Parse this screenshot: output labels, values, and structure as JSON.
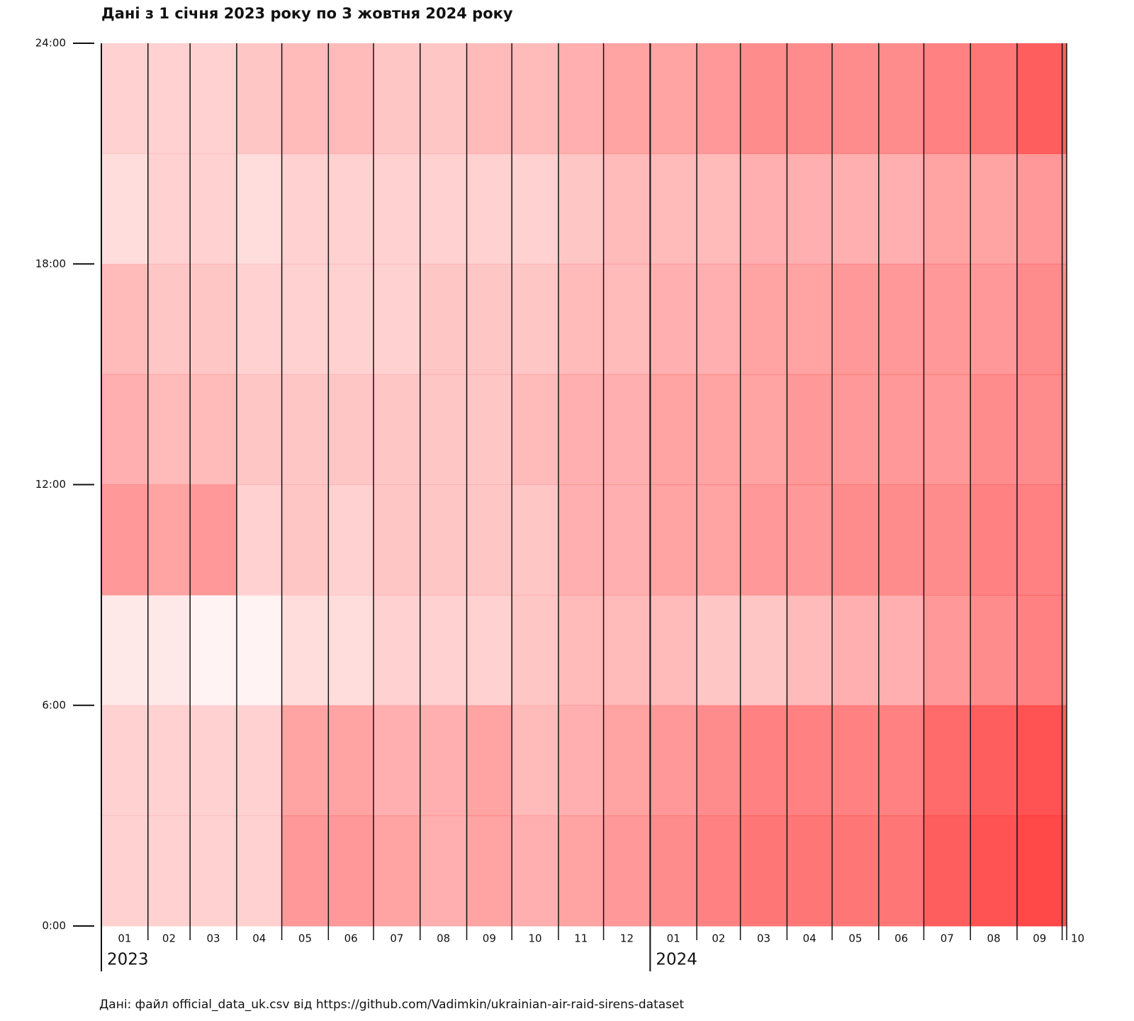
{
  "chart_data": {
    "type": "heatmap",
    "title": "Дані з 1 січня 2023 року по 3 жовтня 2024 року",
    "source": "Дані: файл official_data_uk.csv від https://github.com/Vadimkin/ukrainian-air-raid-sirens-dataset",
    "color": "#ff1a1a",
    "x": [
      "2023-01",
      "2023-02",
      "2023-03",
      "2023-04",
      "2023-05",
      "2023-06",
      "2023-07",
      "2023-08",
      "2023-09",
      "2023-10",
      "2023-11",
      "2023-12",
      "2024-01",
      "2024-02",
      "2024-03",
      "2024-04",
      "2024-05",
      "2024-06",
      "2024-07",
      "2024-08",
      "2024-09",
      "2024-10"
    ],
    "xlim": [
      "2023-01-01",
      "2024-10-03"
    ],
    "xticks": [
      {
        "value": "2023-01",
        "label": "01"
      },
      {
        "value": "2023-02",
        "label": "02"
      },
      {
        "value": "2023-03",
        "label": "03"
      },
      {
        "value": "2023-04",
        "label": "04"
      },
      {
        "value": "2023-05",
        "label": "05"
      },
      {
        "value": "2023-06",
        "label": "06"
      },
      {
        "value": "2023-07",
        "label": "07"
      },
      {
        "value": "2023-08",
        "label": "08"
      },
      {
        "value": "2023-09",
        "label": "09"
      },
      {
        "value": "2023-10",
        "label": "10"
      },
      {
        "value": "2023-11",
        "label": "11"
      },
      {
        "value": "2023-12",
        "label": "12"
      },
      {
        "value": "2024-01",
        "label": "01"
      },
      {
        "value": "2024-02",
        "label": "02"
      },
      {
        "value": "2024-03",
        "label": "03"
      },
      {
        "value": "2024-04",
        "label": "04"
      },
      {
        "value": "2024-05",
        "label": "05"
      },
      {
        "value": "2024-06",
        "label": "06"
      },
      {
        "value": "2024-07",
        "label": "07"
      },
      {
        "value": "2024-08",
        "label": "08"
      },
      {
        "value": "2024-09",
        "label": "09"
      },
      {
        "value": "2024-10",
        "label": "10"
      }
    ],
    "year_labels": [
      {
        "value": "2023-01",
        "label": "2023"
      },
      {
        "value": "2024-01",
        "label": "2024"
      }
    ],
    "ylim": [
      0,
      24
    ],
    "yticks": [
      {
        "value": 0,
        "label": "0:00"
      },
      {
        "value": 6,
        "label": "6:00"
      },
      {
        "value": 12,
        "label": "12:00"
      },
      {
        "value": 18,
        "label": "18:00"
      },
      {
        "value": 24,
        "label": "24:00"
      }
    ],
    "y_bins": [
      0,
      3,
      6,
      9,
      12,
      15,
      18,
      21,
      24
    ],
    "values": [
      [
        0.2,
        0.2,
        0.1,
        0.45,
        0.35,
        0.3,
        0.15,
        0.2
      ],
      [
        0.2,
        0.2,
        0.1,
        0.4,
        0.3,
        0.25,
        0.2,
        0.2
      ],
      [
        0.2,
        0.2,
        0.05,
        0.45,
        0.3,
        0.25,
        0.2,
        0.2
      ],
      [
        0.2,
        0.2,
        0.05,
        0.2,
        0.25,
        0.2,
        0.15,
        0.25
      ],
      [
        0.45,
        0.4,
        0.15,
        0.25,
        0.25,
        0.2,
        0.2,
        0.3
      ],
      [
        0.45,
        0.4,
        0.15,
        0.2,
        0.25,
        0.2,
        0.2,
        0.3
      ],
      [
        0.4,
        0.35,
        0.2,
        0.25,
        0.25,
        0.2,
        0.2,
        0.25
      ],
      [
        0.35,
        0.35,
        0.2,
        0.25,
        0.25,
        0.25,
        0.2,
        0.25
      ],
      [
        0.4,
        0.4,
        0.2,
        0.25,
        0.25,
        0.25,
        0.2,
        0.3
      ],
      [
        0.35,
        0.3,
        0.25,
        0.25,
        0.3,
        0.25,
        0.2,
        0.3
      ],
      [
        0.4,
        0.35,
        0.3,
        0.35,
        0.35,
        0.3,
        0.25,
        0.35
      ],
      [
        0.45,
        0.4,
        0.3,
        0.35,
        0.35,
        0.3,
        0.3,
        0.4
      ],
      [
        0.5,
        0.45,
        0.3,
        0.4,
        0.4,
        0.35,
        0.3,
        0.4
      ],
      [
        0.55,
        0.5,
        0.25,
        0.4,
        0.4,
        0.35,
        0.3,
        0.45
      ],
      [
        0.6,
        0.55,
        0.25,
        0.45,
        0.4,
        0.4,
        0.35,
        0.5
      ],
      [
        0.6,
        0.55,
        0.3,
        0.45,
        0.45,
        0.4,
        0.35,
        0.5
      ],
      [
        0.6,
        0.55,
        0.35,
        0.5,
        0.45,
        0.45,
        0.35,
        0.5
      ],
      [
        0.6,
        0.55,
        0.35,
        0.5,
        0.45,
        0.45,
        0.35,
        0.5
      ],
      [
        0.7,
        0.65,
        0.45,
        0.5,
        0.45,
        0.45,
        0.4,
        0.55
      ],
      [
        0.75,
        0.7,
        0.5,
        0.55,
        0.5,
        0.45,
        0.4,
        0.6
      ],
      [
        0.8,
        0.75,
        0.55,
        0.55,
        0.5,
        0.5,
        0.45,
        0.7
      ],
      [
        0.75,
        0.7,
        0.5,
        0.5,
        0.5,
        0.5,
        0.45,
        0.7
      ]
    ]
  }
}
